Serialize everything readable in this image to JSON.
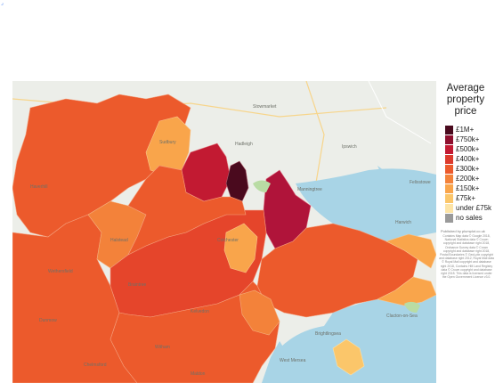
{
  "legend": {
    "title_lines": [
      "Average",
      "property",
      "price"
    ],
    "items": [
      {
        "label": "£1M+",
        "color": "#4a0a1e"
      },
      {
        "label": "£750k+",
        "color": "#8e0f2e"
      },
      {
        "label": "£500k+",
        "color": "#c21a32"
      },
      {
        "label": "£400k+",
        "color": "#dc3a2c"
      },
      {
        "label": "£300k+",
        "color": "#ec5a2c"
      },
      {
        "label": "£200k+",
        "color": "#f3823a"
      },
      {
        "label": "£150k+",
        "color": "#f9a54b"
      },
      {
        "label": "£75k+",
        "color": "#fbc66a"
      },
      {
        "label": "under £75k",
        "color": "#fde4a6"
      },
      {
        "label": "no sales",
        "color": "#9a9a9a"
      }
    ]
  },
  "published_by": "Published by plumplot.co.uk",
  "attribution": "Contains Map data © Google 2018, National Statistics data © Crown copyright and database right 2018, Ordnance Survey data © Crown copyright and database right 2018, Postal Boundaries © GeoLytix copyright and database right 2012, Royal Mail data © Royal Mail copyright and database right 2018, Contains HM Land Registry data © Crown copyright and database right 2018. This data is licensed under the Open Government Licence v3.0.",
  "map_labels": [
    {
      "text": "Ipswich",
      "key": "ipswich"
    },
    {
      "text": "Felixstowe",
      "key": "felixstowe"
    },
    {
      "text": "Harwich",
      "key": "harwich"
    },
    {
      "text": "Colchester",
      "key": "colchester"
    },
    {
      "text": "Braintree",
      "key": "braintree"
    },
    {
      "text": "Halstead",
      "key": "halstead"
    },
    {
      "text": "Sudbury",
      "key": "sudbury"
    },
    {
      "text": "Hadleigh",
      "key": "hadleigh"
    },
    {
      "text": "Manningtree",
      "key": "manningtree"
    },
    {
      "text": "Stowmarket",
      "key": "stowmarket"
    },
    {
      "text": "Haverhill",
      "key": "haverhill"
    },
    {
      "text": "Kelvedon",
      "key": "kelvedon"
    },
    {
      "text": "Witham",
      "key": "witham"
    },
    {
      "text": "Maldon",
      "key": "maldon"
    },
    {
      "text": "Clacton-on-Sea",
      "key": "clacton"
    },
    {
      "text": "Brightlingsea",
      "key": "brightlingsea"
    },
    {
      "text": "West Mersea",
      "key": "mersea"
    },
    {
      "text": "Chelmsford",
      "key": "chelmsford"
    },
    {
      "text": "Dunmow",
      "key": "dunmow"
    },
    {
      "text": "Wethersfield",
      "key": "wethersfield"
    }
  ]
}
